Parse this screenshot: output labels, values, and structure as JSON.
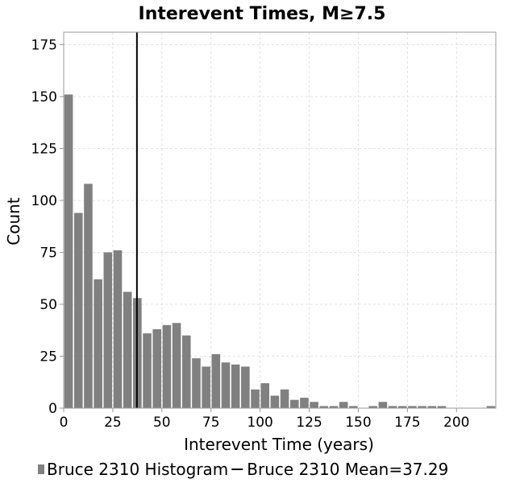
{
  "chart_data": {
    "type": "bar",
    "title": "Interevent Times, M≥7.5",
    "xlabel": "Interevent Time (years)",
    "ylabel": "Count",
    "xlim": [
      0,
      220
    ],
    "ylim": [
      0,
      181
    ],
    "x_ticks": [
      0,
      25,
      50,
      75,
      100,
      125,
      150,
      175,
      200
    ],
    "y_ticks": [
      0,
      25,
      50,
      75,
      100,
      125,
      150,
      175
    ],
    "bin_width": 5,
    "grid": true,
    "legend_position": "bottom",
    "series": [
      {
        "name": "Bruce 2310 Histogram",
        "kind": "histogram",
        "color": "#808080",
        "bin_starts": [
          0,
          5,
          10,
          15,
          20,
          25,
          30,
          35,
          40,
          45,
          50,
          55,
          60,
          65,
          70,
          75,
          80,
          85,
          90,
          95,
          100,
          105,
          110,
          115,
          120,
          125,
          130,
          135,
          140,
          145,
          150,
          155,
          160,
          165,
          170,
          175,
          180,
          185,
          190,
          195,
          200,
          205,
          210,
          215
        ],
        "values": [
          151,
          94,
          108,
          62,
          75,
          76,
          56,
          53,
          36,
          38,
          40,
          41,
          35,
          24,
          20,
          26,
          22,
          21,
          20,
          9,
          12,
          6,
          9,
          4,
          5,
          3,
          1,
          1,
          3,
          1,
          0,
          1,
          3,
          1,
          1,
          1,
          1,
          1,
          1,
          0,
          0,
          0,
          0,
          1
        ]
      },
      {
        "name": "Bruce 2310 Mean=37.29",
        "kind": "vertical_line",
        "color": "#000000",
        "x": 37.29
      }
    ]
  },
  "legend": {
    "histogram_label": "Bruce 2310 Histogram",
    "mean_label": "Bruce 2310 Mean=37.29"
  }
}
